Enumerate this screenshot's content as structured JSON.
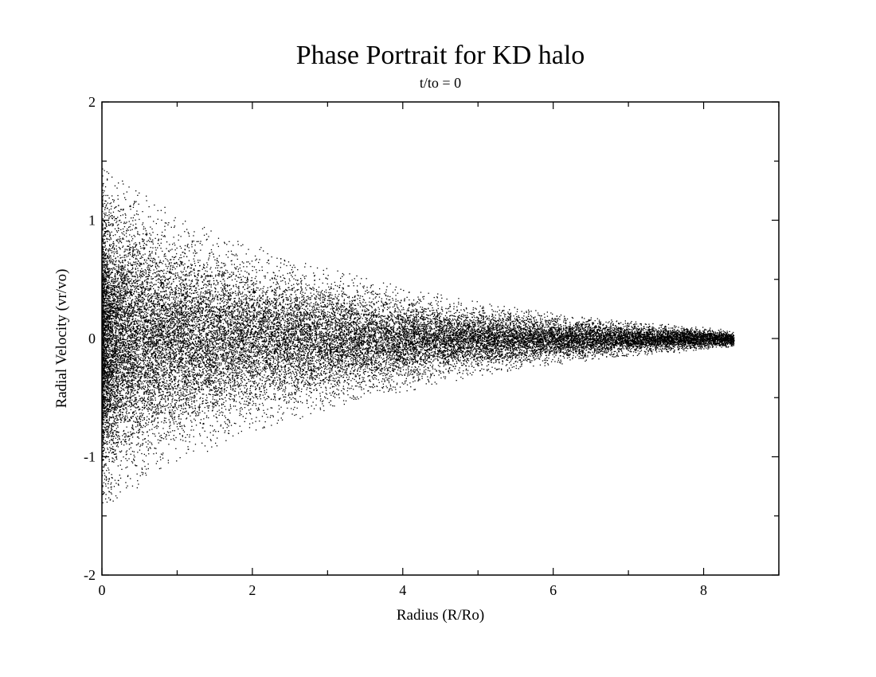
{
  "chart_data": {
    "type": "scatter",
    "title": "Phase Portrait for KD halo",
    "subtitle": "t/to = 0",
    "xlabel": "Radius (R/Ro)",
    "ylabel": "Radial Velocity (vr/vo)",
    "xlim": [
      0,
      9
    ],
    "ylim": [
      -2,
      2
    ],
    "x_ticks": [
      "0",
      "2",
      "4",
      "6",
      "8"
    ],
    "y_ticks": [
      "-2",
      "-1",
      "0",
      "1",
      "2"
    ],
    "grid": false,
    "legend": "none",
    "marker_color": "#000000",
    "series": [
      {
        "points_estimated": true,
        "distribution": "dense cloud of many thousands of particles; velocity spread narrows with radius from about ±1.4 at R=0 to about ±0.1 near R=8.3; densest for R between 0 and 3",
        "envelope": {
          "x": [
            0,
            1,
            2,
            3,
            4,
            5,
            6,
            7,
            8,
            8.5
          ],
          "y_upper": [
            1.45,
            1.05,
            0.8,
            0.6,
            0.45,
            0.32,
            0.22,
            0.15,
            0.1,
            0.06
          ],
          "y_lower": [
            -1.45,
            -1.05,
            -0.8,
            -0.6,
            -0.45,
            -0.32,
            -0.22,
            -0.15,
            -0.1,
            -0.06
          ]
        }
      }
    ]
  }
}
